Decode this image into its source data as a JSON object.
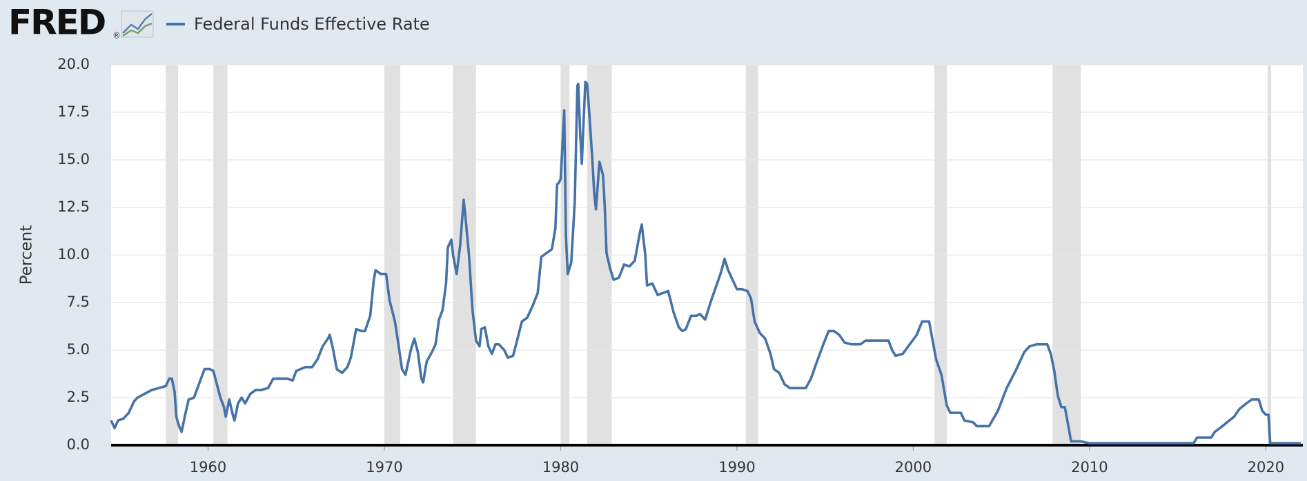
{
  "header": {
    "logo": "FRED",
    "logo_mark": "®"
  },
  "chart_data": {
    "type": "line",
    "y_label": "Percent",
    "x": [
      1954.5,
      1954.7,
      1954.9,
      1955.2,
      1955.5,
      1955.8,
      1956.0,
      1956.4,
      1956.8,
      1957.2,
      1957.6,
      1957.8,
      1957.95,
      1958.1,
      1958.2,
      1958.35,
      1958.5,
      1958.7,
      1958.9,
      1959.2,
      1959.4,
      1959.6,
      1959.8,
      1960.1,
      1960.3,
      1960.5,
      1960.7,
      1960.9,
      1961.0,
      1961.2,
      1961.4,
      1961.5,
      1961.7,
      1961.9,
      1962.1,
      1962.4,
      1962.7,
      1963.0,
      1963.4,
      1963.7,
      1964.0,
      1964.5,
      1964.8,
      1965.0,
      1965.5,
      1965.9,
      1966.2,
      1966.5,
      1966.8,
      1966.9,
      1967.1,
      1967.3,
      1967.6,
      1967.9,
      1968.1,
      1968.4,
      1968.7,
      1968.9,
      1969.2,
      1969.4,
      1969.5,
      1969.8,
      1970.1,
      1970.3,
      1970.6,
      1970.8,
      1971.0,
      1971.2,
      1971.5,
      1971.7,
      1971.9,
      1972.1,
      1972.2,
      1972.4,
      1972.7,
      1972.9,
      1973.1,
      1973.3,
      1973.5,
      1973.6,
      1973.8,
      1973.9,
      1974.1,
      1974.3,
      1974.5,
      1974.6,
      1974.8,
      1975.0,
      1975.2,
      1975.4,
      1975.5,
      1975.7,
      1975.9,
      1976.1,
      1976.3,
      1976.5,
      1976.8,
      1977.0,
      1977.3,
      1977.5,
      1977.8,
      1978.1,
      1978.4,
      1978.7,
      1978.9,
      1979.2,
      1979.5,
      1979.7,
      1979.8,
      1979.9,
      1980.0,
      1980.2,
      1980.3,
      1980.4,
      1980.6,
      1980.8,
      1980.95,
      1981.0,
      1981.1,
      1981.2,
      1981.4,
      1981.5,
      1981.6,
      1981.8,
      1981.9,
      1982.0,
      1982.2,
      1982.4,
      1982.5,
      1982.6,
      1982.8,
      1983.0,
      1983.3,
      1983.6,
      1983.9,
      1984.2,
      1984.5,
      1984.6,
      1984.8,
      1984.9,
      1985.2,
      1985.5,
      1985.8,
      1986.1,
      1986.4,
      1986.7,
      1986.9,
      1987.1,
      1987.4,
      1987.7,
      1987.9,
      1988.2,
      1988.5,
      1988.8,
      1989.1,
      1989.3,
      1989.5,
      1989.8,
      1990.0,
      1990.3,
      1990.6,
      1990.8,
      1991.0,
      1991.3,
      1991.6,
      1991.9,
      1992.1,
      1992.4,
      1992.7,
      1993.0,
      1993.5,
      1993.9,
      1994.2,
      1994.5,
      1994.9,
      1995.2,
      1995.5,
      1995.8,
      1996.1,
      1996.5,
      1997.0,
      1997.3,
      1997.8,
      1998.3,
      1998.6,
      1998.8,
      1999.0,
      1999.4,
      1999.8,
      2000.2,
      2000.5,
      2000.9,
      2001.1,
      2001.3,
      2001.6,
      2001.9,
      2002.1,
      2002.7,
      2002.9,
      2003.4,
      2003.6,
      2004.3,
      2004.8,
      2005.3,
      2005.8,
      2006.3,
      2006.6,
      2007.0,
      2007.6,
      2007.8,
      2008.0,
      2008.2,
      2008.4,
      2008.6,
      2008.8,
      2008.95,
      2009.5,
      2010.0,
      2011.0,
      2012.0,
      2013.5,
      2015.0,
      2015.9,
      2016.1,
      2016.9,
      2017.1,
      2017.4,
      2017.8,
      2018.2,
      2018.5,
      2018.9,
      2019.2,
      2019.6,
      2019.8,
      2020.0,
      2020.15,
      2020.25,
      2021.0,
      2022.0
    ],
    "series": [
      {
        "name": "Federal Funds Effective Rate",
        "color": "#4572a7",
        "values": [
          1.3,
          0.9,
          1.3,
          1.4,
          1.7,
          2.3,
          2.5,
          2.7,
          2.9,
          3.0,
          3.1,
          3.5,
          3.5,
          2.8,
          1.5,
          1.0,
          0.7,
          1.6,
          2.4,
          2.5,
          3.0,
          3.5,
          4.0,
          4.0,
          3.9,
          3.2,
          2.5,
          2.0,
          1.5,
          2.4,
          1.6,
          1.3,
          2.2,
          2.5,
          2.2,
          2.7,
          2.9,
          2.9,
          3.0,
          3.5,
          3.5,
          3.5,
          3.4,
          3.9,
          4.1,
          4.1,
          4.5,
          5.2,
          5.6,
          5.8,
          5.0,
          4.0,
          3.8,
          4.1,
          4.6,
          6.1,
          6.0,
          6.0,
          6.8,
          8.7,
          9.2,
          9.0,
          9.0,
          7.6,
          6.5,
          5.3,
          4.0,
          3.7,
          5.0,
          5.6,
          4.9,
          3.5,
          3.3,
          4.4,
          4.9,
          5.3,
          6.6,
          7.1,
          8.5,
          10.4,
          10.8,
          10.0,
          9.0,
          10.5,
          12.9,
          12.0,
          10.0,
          7.1,
          5.5,
          5.2,
          6.1,
          6.2,
          5.2,
          4.8,
          5.3,
          5.3,
          5.0,
          4.6,
          4.7,
          5.4,
          6.5,
          6.7,
          7.3,
          8.0,
          9.9,
          10.1,
          10.3,
          11.4,
          13.7,
          13.8,
          14.0,
          17.6,
          11.0,
          9.0,
          9.6,
          12.8,
          18.9,
          19.0,
          16.5,
          14.8,
          19.1,
          19.0,
          17.8,
          15.0,
          13.3,
          12.4,
          14.9,
          14.2,
          12.6,
          10.1,
          9.3,
          8.7,
          8.8,
          9.5,
          9.4,
          9.7,
          11.2,
          11.6,
          10.0,
          8.4,
          8.5,
          7.9,
          8.0,
          8.1,
          7.0,
          6.2,
          6.0,
          6.1,
          6.8,
          6.8,
          6.9,
          6.6,
          7.5,
          8.3,
          9.1,
          9.8,
          9.2,
          8.6,
          8.2,
          8.2,
          8.1,
          7.7,
          6.5,
          5.9,
          5.6,
          4.8,
          4.0,
          3.8,
          3.2,
          3.0,
          3.0,
          3.0,
          3.5,
          4.3,
          5.3,
          6.0,
          6.0,
          5.8,
          5.4,
          5.3,
          5.3,
          5.5,
          5.5,
          5.5,
          5.5,
          5.0,
          4.7,
          4.8,
          5.3,
          5.8,
          6.5,
          6.5,
          5.5,
          4.5,
          3.7,
          2.1,
          1.7,
          1.7,
          1.3,
          1.2,
          1.0,
          1.0,
          1.8,
          3.0,
          3.9,
          4.9,
          5.2,
          5.3,
          5.3,
          4.8,
          3.9,
          2.6,
          2.0,
          2.0,
          1.0,
          0.2,
          0.2,
          0.1,
          0.1,
          0.1,
          0.1,
          0.1,
          0.1,
          0.4,
          0.4,
          0.7,
          0.9,
          1.2,
          1.5,
          1.9,
          2.2,
          2.4,
          2.4,
          1.8,
          1.6,
          1.6,
          0.1,
          0.1,
          0.1
        ]
      }
    ],
    "recessions": [
      [
        1957.6,
        1958.3
      ],
      [
        1960.3,
        1961.1
      ],
      [
        1970.0,
        1970.9
      ],
      [
        1973.9,
        1975.2
      ],
      [
        1980.0,
        1980.5
      ],
      [
        1981.5,
        1982.9
      ],
      [
        1990.5,
        1991.2
      ],
      [
        2001.2,
        2001.9
      ],
      [
        2007.9,
        2009.5
      ],
      [
        2020.1,
        2020.3
      ]
    ],
    "xlim": [
      1954.5,
      2022.1
    ],
    "xticks": [
      1960,
      1970,
      1980,
      1990,
      2000,
      2010,
      2020
    ],
    "ylim": [
      0,
      20
    ],
    "yticks": [
      {
        "value": 0,
        "label": "0.0"
      },
      2.5,
      {
        "value": 5,
        "label": "5.0"
      },
      7.5,
      {
        "value": 10,
        "label": "10.0"
      },
      12.5,
      {
        "value": 15,
        "label": "15.0"
      },
      17.5,
      {
        "value": 20,
        "label": "20.0"
      }
    ],
    "grid": true
  }
}
